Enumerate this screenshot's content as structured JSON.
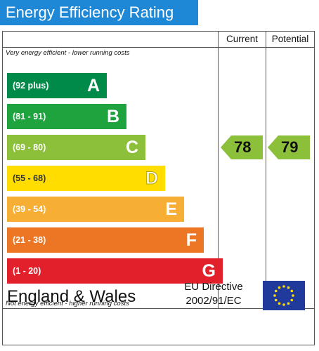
{
  "title": "Energy Efficiency Rating",
  "columns": {
    "current": "Current",
    "potential": "Potential"
  },
  "notes": {
    "top": "Very energy efficient - lower running costs",
    "bottom": "Not energy efficient - higher running costs"
  },
  "footer": {
    "region": "England & Wales",
    "directive_line1": "EU Directive",
    "directive_line2": "2002/91/EC",
    "flag_icon": "eu-flag-icon"
  },
  "chart_data": {
    "type": "bar",
    "categories": [
      "A",
      "B",
      "C",
      "D",
      "E",
      "F",
      "G"
    ],
    "ranges": [
      "(92 plus)",
      "(81 - 91)",
      "(69 - 80)",
      "(55 - 68)",
      "(39 - 54)",
      "(21 - 38)",
      "(1 - 20)"
    ],
    "colors": [
      "#008a4a",
      "#1ea33f",
      "#8cbf3a",
      "#ffdd00",
      "#f6ae35",
      "#ed7625",
      "#e2202c"
    ],
    "current": {
      "value": 78,
      "band": "C"
    },
    "potential": {
      "value": 79,
      "band": "C"
    }
  }
}
